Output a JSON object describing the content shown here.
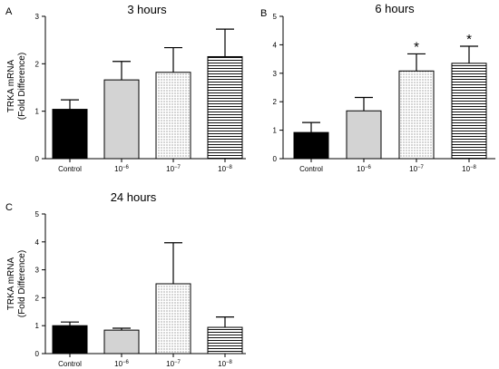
{
  "chart_data": [
    {
      "panel": "A",
      "type": "bar",
      "title": "3 hours",
      "ylabel_line1": "TRKA mRNA",
      "ylabel_line2": "(Fold Difference)",
      "ylim": [
        0,
        3
      ],
      "yticks": [
        "0",
        "1",
        "2",
        "3"
      ],
      "categories": [
        {
          "base": "Control",
          "exp": ""
        },
        {
          "base": "10",
          "exp": "−6"
        },
        {
          "base": "10",
          "exp": "−7"
        },
        {
          "base": "10",
          "exp": "−8"
        }
      ],
      "values": [
        1.04,
        1.66,
        1.82,
        2.15
      ],
      "errors": [
        0.2,
        0.39,
        0.52,
        0.58
      ],
      "significance": [
        "",
        "",
        "",
        ""
      ],
      "patterns": [
        "solid-black",
        "solid-gray",
        "dots",
        "hlines"
      ]
    },
    {
      "panel": "B",
      "type": "bar",
      "title": "6 hours",
      "ylabel_line1": "",
      "ylabel_line2": "",
      "ylim": [
        0,
        5
      ],
      "yticks": [
        "0",
        "1",
        "2",
        "3",
        "4",
        "5"
      ],
      "categories": [
        {
          "base": "Control",
          "exp": ""
        },
        {
          "base": "10",
          "exp": "−6"
        },
        {
          "base": "10",
          "exp": "−7"
        },
        {
          "base": "10",
          "exp": "−8"
        }
      ],
      "values": [
        0.92,
        1.68,
        3.08,
        3.35
      ],
      "errors": [
        0.35,
        0.47,
        0.6,
        0.6
      ],
      "significance": [
        "",
        "",
        "*",
        "*"
      ],
      "patterns": [
        "solid-black",
        "solid-gray",
        "dots",
        "hlines"
      ]
    },
    {
      "panel": "C",
      "type": "bar",
      "title": "24 hours",
      "ylabel_line1": "TRKA  mRNA",
      "ylabel_line2": "(Fold Difference)",
      "ylim": [
        0,
        5
      ],
      "yticks": [
        "0",
        "1",
        "2",
        "3",
        "4",
        "5"
      ],
      "categories": [
        {
          "base": "Control",
          "exp": ""
        },
        {
          "base": "10",
          "exp": "−6"
        },
        {
          "base": "10",
          "exp": "−7"
        },
        {
          "base": "10",
          "exp": "−8"
        }
      ],
      "values": [
        1.0,
        0.84,
        2.5,
        0.94
      ],
      "errors": [
        0.13,
        0.07,
        1.47,
        0.37
      ],
      "significance": [
        "",
        "",
        "",
        ""
      ],
      "patterns": [
        "solid-black",
        "solid-gray",
        "dots",
        "hlines"
      ]
    }
  ],
  "colors": {
    "control_bar": "#000000",
    "low_dose_bar": "#d3d3d3",
    "axis": "#000000",
    "pattern_ink": "#000000"
  }
}
